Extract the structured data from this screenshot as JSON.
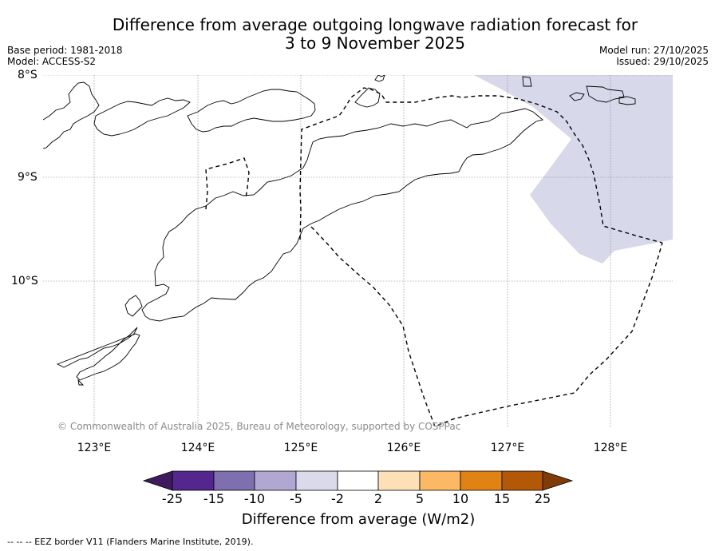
{
  "title_line1": "Difference from average outgoing longwave radiation forecast for",
  "title_line2": "3 to 9 November 2025",
  "base_period": "Base period: 1981-2018",
  "model": "Model: ACCESS-S2",
  "model_run": "Model run: 27/10/2025",
  "issued": "Issued: 29/10/2025",
  "lat_labels": [
    "8°S",
    "9°S",
    "10°S"
  ],
  "lon_labels": [
    "123°E",
    "124°E",
    "125°E",
    "126°E",
    "127°E",
    "128°E"
  ],
  "copyright": "© Commonwealth of Australia 2025, Bureau of Meteorology, supported by COSPPac",
  "colorbar": {
    "ticks": [
      "-25",
      "-15",
      "-10",
      "-5",
      "-2",
      "2",
      "5",
      "10",
      "15",
      "25"
    ],
    "colors": [
      "#3f1a5e",
      "#54278f",
      "#7e6fae",
      "#b0a8d2",
      "#dadaeb",
      "#ffffff",
      "#fee0b6",
      "#fdb863",
      "#e08214",
      "#b35806",
      "#7f3b08"
    ],
    "label": "Difference from average (W/m2)"
  },
  "footnote": "--  --  -- EEZ border V11 (Flanders Marine Institute, 2019).",
  "map_data": {
    "lon_range": [
      122.5,
      128.6
    ],
    "lat_range": [
      -11.4,
      -8.0
    ],
    "anomaly_region_class": "-5 to -2",
    "anomaly_region_color": "#d7d8ea"
  }
}
